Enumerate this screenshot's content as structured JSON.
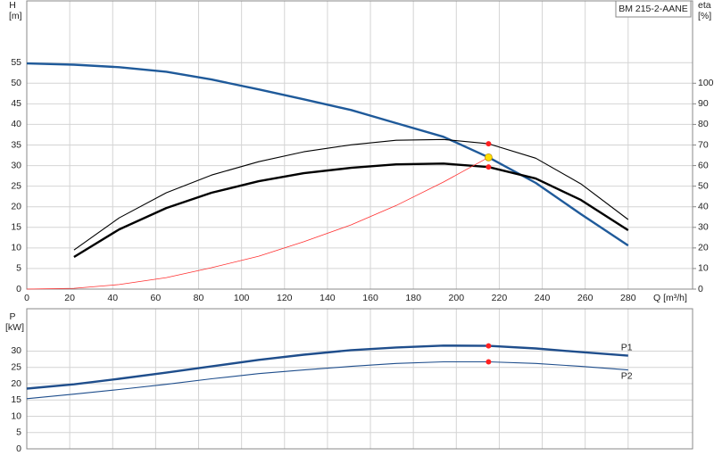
{
  "chart_data": [
    {
      "type": "line",
      "title": "BM 215-2-AANE",
      "ylabel": "H",
      "yunit": "[m]",
      "y2label": "eta",
      "y2unit": "[%]",
      "xlabel": "Q [m³/h]",
      "xlim": [
        0,
        310
      ],
      "xticks": [
        0,
        20,
        40,
        60,
        80,
        100,
        120,
        140,
        160,
        180,
        200,
        220,
        240,
        260,
        280
      ],
      "ylim": [
        0,
        70
      ],
      "yticks": [
        0,
        5,
        10,
        15,
        20,
        25,
        30,
        35,
        40,
        45,
        50,
        55
      ],
      "y2lim": [
        0,
        140
      ],
      "y2ticks": [
        0,
        10,
        20,
        30,
        40,
        50,
        60,
        70,
        80,
        90,
        100
      ],
      "grid": true,
      "series": [
        {
          "color": "#1f5a9a",
          "weight": "bold",
          "x": [
            0,
            22,
            43,
            65,
            86,
            108,
            129,
            151,
            172,
            194,
            215,
            237,
            258,
            280
          ],
          "values": [
            54.8,
            54.5,
            53.9,
            52.8,
            50.9,
            48.5,
            46.1,
            43.5,
            40.3,
            37.0,
            32.0,
            25.8,
            18.2,
            10.6
          ]
        },
        {
          "color": "#000000",
          "weight": "thin",
          "axis": "y2",
          "x": [
            22,
            43,
            65,
            86,
            108,
            129,
            151,
            172,
            194,
            215,
            237,
            258,
            280
          ],
          "values": [
            19,
            34.6,
            46.8,
            55.4,
            61.9,
            66.7,
            70.1,
            72.3,
            72.7,
            70.6,
            63.6,
            51.1,
            33.8
          ]
        },
        {
          "color": "#000000",
          "weight": "bold",
          "axis": "y2",
          "x": [
            22,
            43,
            65,
            86,
            108,
            129,
            151,
            172,
            194,
            215,
            237,
            258,
            280
          ],
          "values": [
            15.6,
            29,
            39.4,
            46.8,
            52.4,
            56.3,
            58.9,
            60.6,
            61,
            59.3,
            53.7,
            43.3,
            28.6
          ]
        },
        {
          "color": "#ff3030",
          "weight": "thin",
          "x": [
            0,
            22,
            43,
            65,
            86,
            108,
            129,
            151,
            172,
            194,
            215
          ],
          "values": [
            0,
            0.2,
            1.1,
            2.8,
            5.2,
            8,
            11.5,
            15.6,
            20.3,
            26,
            32
          ]
        }
      ],
      "markers": [
        {
          "x": 215,
          "y": 70.6,
          "axis": "y2",
          "color": "#ff2020"
        },
        {
          "x": 215,
          "y": 59.3,
          "axis": "y2",
          "color": "#ff2020"
        },
        {
          "x": 215,
          "y": 32,
          "color": "#ffe000"
        }
      ]
    },
    {
      "type": "line",
      "ylabel": "P",
      "yunit": "[kW]",
      "xlim": [
        0,
        310
      ],
      "ylim": [
        0,
        43
      ],
      "yticks": [
        0,
        5,
        10,
        15,
        20,
        25,
        30
      ],
      "grid": true,
      "series": [
        {
          "name": "P1",
          "color": "#1f4e8c",
          "weight": "bold",
          "x": [
            0,
            22,
            43,
            65,
            86,
            108,
            129,
            151,
            172,
            194,
            215,
            237,
            258,
            280
          ],
          "values": [
            18.5,
            19.8,
            21.5,
            23.4,
            25.3,
            27.3,
            28.9,
            30.3,
            31.1,
            31.7,
            31.6,
            30.8,
            29.7,
            28.6
          ]
        },
        {
          "name": "P2",
          "color": "#1f4e8c",
          "weight": "thin",
          "x": [
            0,
            22,
            43,
            65,
            86,
            108,
            129,
            151,
            172,
            194,
            215,
            237,
            258,
            280
          ],
          "values": [
            15.4,
            16.8,
            18.2,
            19.8,
            21.5,
            23.1,
            24.2,
            25.3,
            26.2,
            26.7,
            26.7,
            26.2,
            25.3,
            24.2
          ]
        }
      ],
      "markers": [
        {
          "x": 215,
          "y": 31.6,
          "color": "#ff2020"
        },
        {
          "x": 215,
          "y": 26.7,
          "color": "#ff2020"
        }
      ]
    }
  ]
}
